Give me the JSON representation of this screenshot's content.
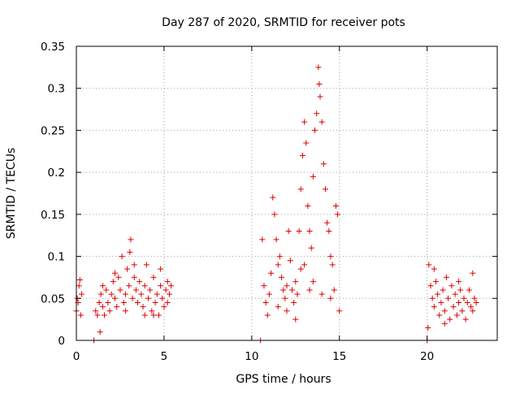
{
  "chart_data": {
    "type": "scatter",
    "title": "Day 287 of 2020, SRMTID for receiver pots",
    "xlabel": "GPS time / hours",
    "ylabel": "SRMTID / TECUs",
    "xlim": [
      0,
      24
    ],
    "ylim": [
      0,
      0.35
    ],
    "xticks": [
      0,
      5,
      10,
      15,
      20
    ],
    "xtick_labels": [
      "0",
      "5",
      "10",
      "15",
      "20"
    ],
    "yticks": [
      0,
      0.05,
      0.1,
      0.15,
      0.2,
      0.25,
      0.3,
      0.35
    ],
    "ytick_labels": [
      "0",
      "0.05",
      "0.1",
      "0.15",
      "0.2",
      "0.25",
      "0.3",
      "0.35"
    ],
    "grid": true,
    "marker": "+",
    "color": "#e00000",
    "series": [
      {
        "name": "SRMTID",
        "points": [
          [
            0.0,
            0.035
          ],
          [
            0.05,
            0.05
          ],
          [
            0.1,
            0.045
          ],
          [
            0.15,
            0.065
          ],
          [
            0.2,
            0.072
          ],
          [
            0.25,
            0.03
          ],
          [
            0.3,
            0.055
          ],
          [
            1.0,
            0.0
          ],
          [
            1.1,
            0.035
          ],
          [
            1.2,
            0.03
          ],
          [
            1.3,
            0.045
          ],
          [
            1.35,
            0.01
          ],
          [
            1.4,
            0.055
          ],
          [
            1.5,
            0.04
          ],
          [
            1.6,
            0.03
          ],
          [
            1.7,
            0.06
          ],
          [
            1.8,
            0.045
          ],
          [
            1.9,
            0.035
          ],
          [
            2.0,
            0.055
          ],
          [
            2.1,
            0.07
          ],
          [
            2.2,
            0.05
          ],
          [
            2.3,
            0.04
          ],
          [
            2.4,
            0.075
          ],
          [
            2.5,
            0.06
          ],
          [
            2.6,
            0.1
          ],
          [
            2.7,
            0.045
          ],
          [
            2.8,
            0.055
          ],
          [
            2.9,
            0.085
          ],
          [
            3.0,
            0.065
          ],
          [
            3.05,
            0.105
          ],
          [
            3.1,
            0.12
          ],
          [
            3.2,
            0.05
          ],
          [
            3.3,
            0.075
          ],
          [
            3.4,
            0.06
          ],
          [
            3.5,
            0.045
          ],
          [
            3.6,
            0.07
          ],
          [
            3.7,
            0.055
          ],
          [
            3.8,
            0.04
          ],
          [
            3.9,
            0.065
          ],
          [
            4.0,
            0.09
          ],
          [
            4.1,
            0.05
          ],
          [
            4.2,
            0.06
          ],
          [
            4.3,
            0.035
          ],
          [
            4.4,
            0.075
          ],
          [
            4.5,
            0.045
          ],
          [
            4.6,
            0.055
          ],
          [
            4.7,
            0.03
          ],
          [
            4.8,
            0.065
          ],
          [
            4.9,
            0.05
          ],
          [
            5.0,
            0.04
          ],
          [
            5.1,
            0.06
          ],
          [
            5.2,
            0.07
          ],
          [
            5.3,
            0.055
          ],
          [
            5.4,
            0.065
          ],
          [
            1.5,
            0.065
          ],
          [
            2.2,
            0.08
          ],
          [
            2.8,
            0.035
          ],
          [
            3.3,
            0.09
          ],
          [
            3.9,
            0.03
          ],
          [
            4.4,
            0.03
          ],
          [
            4.8,
            0.085
          ],
          [
            5.2,
            0.045
          ],
          [
            10.5,
            0.0
          ],
          [
            10.6,
            0.12
          ],
          [
            10.7,
            0.065
          ],
          [
            10.8,
            0.045
          ],
          [
            10.9,
            0.03
          ],
          [
            11.0,
            0.055
          ],
          [
            11.1,
            0.08
          ],
          [
            11.2,
            0.17
          ],
          [
            11.3,
            0.15
          ],
          [
            11.4,
            0.12
          ],
          [
            11.5,
            0.09
          ],
          [
            11.6,
            0.1
          ],
          [
            11.7,
            0.075
          ],
          [
            11.8,
            0.06
          ],
          [
            11.9,
            0.05
          ],
          [
            12.0,
            0.065
          ],
          [
            12.1,
            0.13
          ],
          [
            12.2,
            0.095
          ],
          [
            12.3,
            0.06
          ],
          [
            12.4,
            0.045
          ],
          [
            12.5,
            0.07
          ],
          [
            12.6,
            0.055
          ],
          [
            12.7,
            0.13
          ],
          [
            12.8,
            0.18
          ],
          [
            12.9,
            0.22
          ],
          [
            13.0,
            0.26
          ],
          [
            13.1,
            0.235
          ],
          [
            13.2,
            0.16
          ],
          [
            13.3,
            0.13
          ],
          [
            13.4,
            0.11
          ],
          [
            13.5,
            0.195
          ],
          [
            13.6,
            0.25
          ],
          [
            13.7,
            0.27
          ],
          [
            13.8,
            0.325
          ],
          [
            13.85,
            0.305
          ],
          [
            13.9,
            0.29
          ],
          [
            14.0,
            0.26
          ],
          [
            14.1,
            0.21
          ],
          [
            14.2,
            0.18
          ],
          [
            14.3,
            0.14
          ],
          [
            14.4,
            0.13
          ],
          [
            14.5,
            0.1
          ],
          [
            14.6,
            0.09
          ],
          [
            14.7,
            0.06
          ],
          [
            14.8,
            0.16
          ],
          [
            14.9,
            0.15
          ],
          [
            15.0,
            0.035
          ],
          [
            12.0,
            0.035
          ],
          [
            12.5,
            0.025
          ],
          [
            13.0,
            0.09
          ],
          [
            13.5,
            0.07
          ],
          [
            14.0,
            0.055
          ],
          [
            14.5,
            0.05
          ],
          [
            11.5,
            0.04
          ],
          [
            12.8,
            0.085
          ],
          [
            13.3,
            0.06
          ],
          [
            20.0,
            0.0
          ],
          [
            20.05,
            0.015
          ],
          [
            20.1,
            0.09
          ],
          [
            20.2,
            0.065
          ],
          [
            20.3,
            0.05
          ],
          [
            20.4,
            0.04
          ],
          [
            20.5,
            0.07
          ],
          [
            20.6,
            0.055
          ],
          [
            20.7,
            0.03
          ],
          [
            20.8,
            0.045
          ],
          [
            20.9,
            0.06
          ],
          [
            21.0,
            0.035
          ],
          [
            21.1,
            0.075
          ],
          [
            21.2,
            0.05
          ],
          [
            21.3,
            0.025
          ],
          [
            21.4,
            0.065
          ],
          [
            21.5,
            0.04
          ],
          [
            21.6,
            0.055
          ],
          [
            21.7,
            0.03
          ],
          [
            21.8,
            0.045
          ],
          [
            21.9,
            0.06
          ],
          [
            22.0,
            0.035
          ],
          [
            22.1,
            0.05
          ],
          [
            22.2,
            0.025
          ],
          [
            22.3,
            0.045
          ],
          [
            22.4,
            0.06
          ],
          [
            22.5,
            0.04
          ],
          [
            22.6,
            0.08
          ],
          [
            22.7,
            0.05
          ],
          [
            22.8,
            0.045
          ],
          [
            20.4,
            0.085
          ],
          [
            21.0,
            0.02
          ],
          [
            21.8,
            0.07
          ],
          [
            22.6,
            0.035
          ]
        ]
      }
    ]
  }
}
